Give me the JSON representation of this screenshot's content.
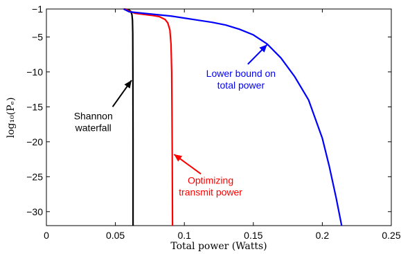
{
  "chart_data": {
    "type": "line",
    "xlabel": "Total power (Watts)",
    "ylabel": "log₁₀(Pₑ)",
    "xlim": [
      0,
      0.25
    ],
    "ylim": [
      -32,
      -1
    ],
    "xticks": [
      0,
      0.05,
      0.1,
      0.15,
      0.2,
      0.25
    ],
    "xtick_labels": [
      "0",
      "0.05",
      "0.1",
      "0.15",
      "0.2",
      "0.25"
    ],
    "yticks": [
      -1,
      -5,
      -10,
      -15,
      -20,
      -25,
      -30
    ],
    "ytick_labels": [
      "−1",
      "−5",
      "−10",
      "−15",
      "−20",
      "−25",
      "−30"
    ],
    "grid": false,
    "series": [
      {
        "color": "#000000",
        "x": [
          0.056,
          0.058,
          0.06,
          0.0612,
          0.062,
          0.0624,
          0.0626,
          0.0627,
          0.0628,
          0.0628
        ],
        "y": [
          -1.0,
          -1.05,
          -1.15,
          -1.35,
          -1.8,
          -2.6,
          -4.5,
          -10,
          -20,
          -32
        ]
      },
      {
        "color": "#ff0000",
        "x": [
          0.056,
          0.058,
          0.06,
          0.062,
          0.064,
          0.07,
          0.076,
          0.082,
          0.086,
          0.088,
          0.0895,
          0.0903,
          0.0908,
          0.091,
          0.0912,
          0.0913,
          0.0914
        ],
        "y": [
          -1.0,
          -1.1,
          -1.3,
          -1.45,
          -1.6,
          -1.75,
          -1.9,
          -2.1,
          -2.5,
          -3.0,
          -4.0,
          -6.0,
          -10,
          -15,
          -21.8,
          -27,
          -32
        ]
      },
      {
        "color": "#0000ff",
        "x": [
          0.056,
          0.06,
          0.07,
          0.08,
          0.09,
          0.1,
          0.11,
          0.12,
          0.13,
          0.14,
          0.15,
          0.16,
          0.17,
          0.18,
          0.19,
          0.2,
          0.205,
          0.21,
          0.214
        ],
        "y": [
          -1.0,
          -1.4,
          -1.6,
          -1.8,
          -2.0,
          -2.3,
          -2.6,
          -2.9,
          -3.3,
          -3.9,
          -4.7,
          -6.0,
          -8.0,
          -10.7,
          -14.0,
          -19.5,
          -23.5,
          -28.0,
          -32
        ]
      }
    ],
    "annotations": [
      {
        "lines": [
          "Shannon",
          "waterfall"
        ],
        "color": "#000000",
        "text_at": [
          0.034,
          -16.8
        ],
        "arrow_from": [
          0.048,
          -15.0
        ],
        "arrow_to": [
          0.0617,
          -11.2
        ]
      },
      {
        "lines": [
          "Optimizing",
          "transmit power"
        ],
        "color": "#ff0000",
        "text_at": [
          0.119,
          -26.0
        ],
        "arrow_from": [
          0.112,
          -24.6
        ],
        "arrow_to": [
          0.0925,
          -21.8
        ]
      },
      {
        "lines": [
          "Lower bound on",
          "total power"
        ],
        "color": "#0000ff",
        "text_at": [
          0.141,
          -10.7
        ],
        "arrow_from": [
          0.146,
          -8.9
        ],
        "arrow_to": [
          0.16,
          -6.1
        ]
      }
    ]
  }
}
